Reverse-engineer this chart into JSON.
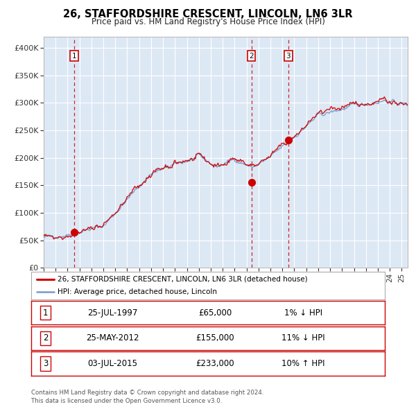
{
  "title": "26, STAFFORDSHIRE CRESCENT, LINCOLN, LN6 3LR",
  "subtitle": "Price paid vs. HM Land Registry's House Price Index (HPI)",
  "hpi_color": "#7799cc",
  "price_color": "#cc0000",
  "bg_color": "#ffffff",
  "plot_bg": "#dde8f5",
  "grid_color": "#ffffff",
  "ylim": [
    0,
    420000
  ],
  "yticks": [
    0,
    50000,
    100000,
    150000,
    200000,
    250000,
    300000,
    350000,
    400000
  ],
  "ytick_labels": [
    "£0",
    "£50K",
    "£100K",
    "£150K",
    "£200K",
    "£250K",
    "£300K",
    "£350K",
    "£400K"
  ],
  "transactions": [
    {
      "date_num": 1997.57,
      "price": 65000,
      "label": "1"
    },
    {
      "date_num": 2012.4,
      "price": 155000,
      "label": "2"
    },
    {
      "date_num": 2015.5,
      "price": 233000,
      "label": "3"
    }
  ],
  "legend_entries": [
    {
      "label": "26, STAFFORDSHIRE CRESCENT, LINCOLN, LN6 3LR (detached house)",
      "color": "#cc0000",
      "lw": 2
    },
    {
      "label": "HPI: Average price, detached house, Lincoln",
      "color": "#7799cc",
      "lw": 1.5
    }
  ],
  "table_rows": [
    {
      "num": "1",
      "date": "25-JUL-1997",
      "price": "£65,000",
      "hpi": "1% ↓ HPI"
    },
    {
      "num": "2",
      "date": "25-MAY-2012",
      "price": "£155,000",
      "hpi": "11% ↓ HPI"
    },
    {
      "num": "3",
      "date": "03-JUL-2015",
      "price": "£233,000",
      "hpi": "10% ↑ HPI"
    }
  ],
  "footnote": "Contains HM Land Registry data © Crown copyright and database right 2024.\nThis data is licensed under the Open Government Licence v3.0.",
  "xlim_start": 1995.0,
  "xlim_end": 2025.5
}
